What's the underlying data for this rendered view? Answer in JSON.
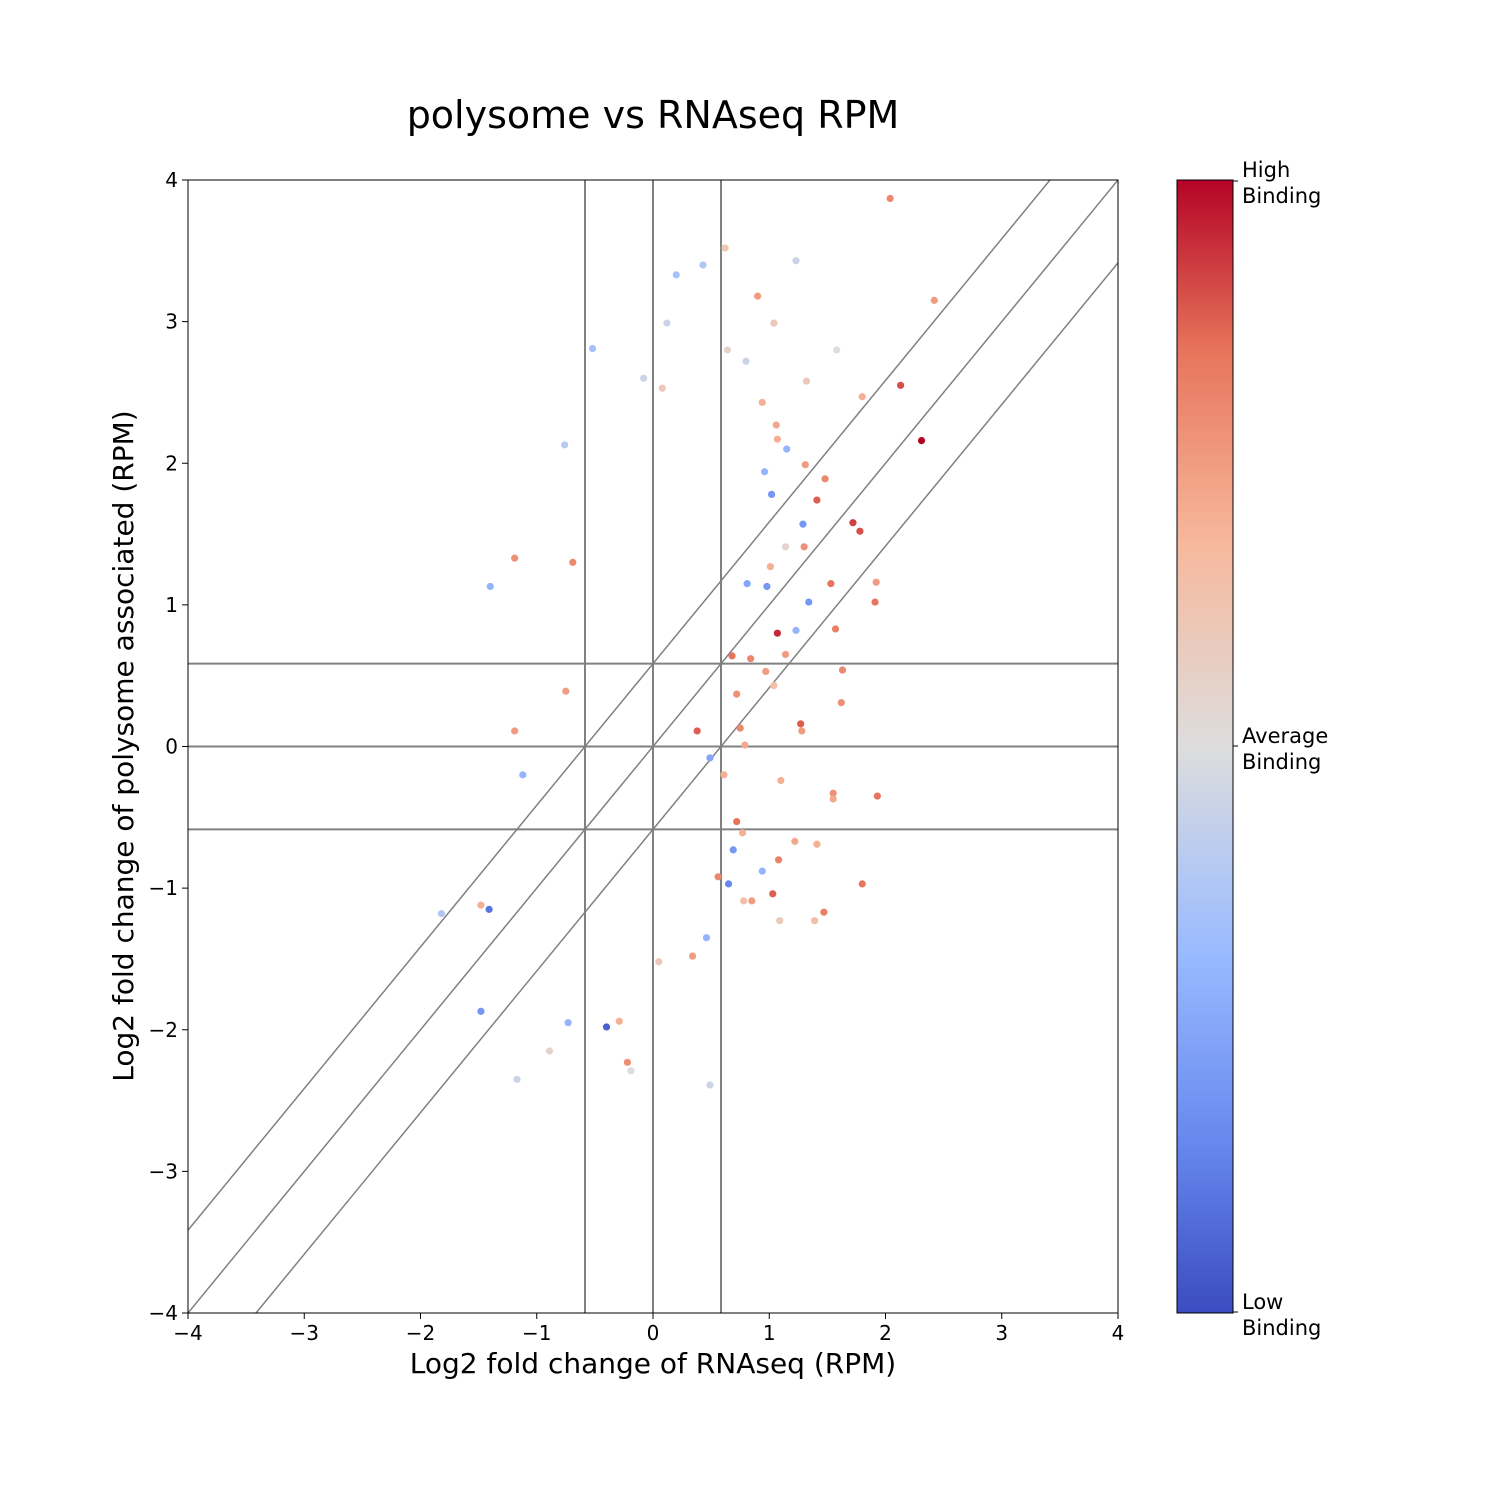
{
  "chart_data": {
    "type": "scatter",
    "title": "polysome vs RNAseq RPM",
    "xlabel": "Log2 fold change of RNAseq (RPM)",
    "ylabel": "Log2 fold change of polysome associated (RPM)",
    "xlim": [
      -4,
      4
    ],
    "ylim": [
      -4,
      4
    ],
    "xticks": [
      "−4",
      "−3",
      "−2",
      "−1",
      "0",
      "1",
      "2",
      "3",
      "4"
    ],
    "yticks": [
      "−4",
      "−3",
      "−2",
      "−1",
      "0",
      "1",
      "2",
      "3",
      "4"
    ],
    "grid": false,
    "reference_lines": {
      "vertical": [
        -0.585,
        0,
        0.585
      ],
      "horizontal": [
        -0.585,
        0,
        0.585
      ],
      "diagonal_offsets": [
        0.585,
        0,
        -0.585
      ]
    },
    "colormap": "coolwarm",
    "colorbar": {
      "high_label": [
        "High",
        "Binding"
      ],
      "mid_label": [
        "Average",
        "Binding"
      ],
      "low_label": [
        "Low",
        "Binding"
      ]
    },
    "colors": {
      "low": "#3b4cc0",
      "mid": "#dddddd",
      "high": "#b40426",
      "lines": "#808080"
    },
    "points": [
      [
        2.04,
        3.87,
        0.8
      ],
      [
        2.42,
        3.15,
        0.75
      ],
      [
        2.13,
        2.55,
        0.9
      ],
      [
        2.31,
        2.16,
        1.0
      ],
      [
        1.72,
        1.58,
        0.92
      ],
      [
        1.78,
        1.52,
        0.9
      ],
      [
        1.48,
        1.89,
        0.8
      ],
      [
        1.41,
        1.74,
        0.88
      ],
      [
        1.53,
        1.15,
        0.85
      ],
      [
        1.91,
        1.02,
        0.85
      ],
      [
        1.92,
        1.16,
        0.75
      ],
      [
        1.57,
        0.83,
        0.82
      ],
      [
        1.63,
        0.54,
        0.8
      ],
      [
        1.62,
        0.31,
        0.78
      ],
      [
        1.07,
        0.8,
        0.95
      ],
      [
        1.27,
        0.16,
        0.88
      ],
      [
        1.28,
        0.11,
        0.75
      ],
      [
        1.55,
        -0.33,
        0.78
      ],
      [
        1.55,
        -0.37,
        0.72
      ],
      [
        1.93,
        -0.35,
        0.85
      ],
      [
        1.8,
        -0.97,
        0.85
      ],
      [
        1.47,
        -1.17,
        0.82
      ],
      [
        1.03,
        -1.04,
        0.88
      ],
      [
        1.08,
        -0.8,
        0.82
      ],
      [
        1.22,
        -0.67,
        0.72
      ],
      [
        1.41,
        -0.69,
        0.7
      ],
      [
        1.39,
        -1.23,
        0.65
      ],
      [
        1.09,
        -1.23,
        0.6
      ],
      [
        0.85,
        -1.09,
        0.75
      ],
      [
        0.9,
        3.18,
        0.75
      ],
      [
        0.62,
        3.52,
        0.62
      ],
      [
        1.04,
        2.99,
        0.6
      ],
      [
        1.23,
        3.43,
        0.45
      ],
      [
        1.32,
        2.58,
        0.6
      ],
      [
        1.58,
        2.8,
        0.5
      ],
      [
        1.8,
        2.47,
        0.7
      ],
      [
        0.2,
        3.33,
        0.35
      ],
      [
        0.43,
        3.4,
        0.38
      ],
      [
        -0.52,
        2.81,
        0.35
      ],
      [
        -0.76,
        2.13,
        0.4
      ],
      [
        -1.4,
        1.13,
        0.3
      ],
      [
        -1.19,
        1.33,
        0.78
      ],
      [
        -0.69,
        1.3,
        0.8
      ],
      [
        -1.19,
        0.11,
        0.75
      ],
      [
        -0.75,
        0.39,
        0.75
      ],
      [
        -1.12,
        -0.2,
        0.3
      ],
      [
        -1.41,
        -1.15,
        0.1
      ],
      [
        -1.82,
        -1.18,
        0.38
      ],
      [
        -1.48,
        -1.12,
        0.7
      ],
      [
        -1.48,
        -1.87,
        0.2
      ],
      [
        -1.17,
        -2.35,
        0.45
      ],
      [
        -0.89,
        -2.15,
        0.55
      ],
      [
        -0.73,
        -1.95,
        0.3
      ],
      [
        -0.4,
        -1.98,
        0.05
      ],
      [
        -0.22,
        -2.23,
        0.78
      ],
      [
        -0.19,
        -2.29,
        0.5
      ],
      [
        0.49,
        -2.39,
        0.45
      ],
      [
        0.34,
        -1.48,
        0.75
      ],
      [
        0.46,
        -1.35,
        0.3
      ],
      [
        0.05,
        -1.52,
        0.6
      ],
      [
        -0.29,
        -1.94,
        0.7
      ],
      [
        -0.08,
        2.6,
        0.45
      ],
      [
        0.08,
        2.53,
        0.6
      ],
      [
        0.12,
        2.99,
        0.45
      ],
      [
        0.64,
        2.8,
        0.55
      ],
      [
        0.8,
        2.72,
        0.45
      ],
      [
        0.94,
        2.43,
        0.7
      ],
      [
        1.06,
        2.27,
        0.72
      ],
      [
        1.07,
        2.17,
        0.7
      ],
      [
        1.15,
        2.1,
        0.3
      ],
      [
        1.31,
        1.99,
        0.75
      ],
      [
        1.02,
        1.78,
        0.2
      ],
      [
        0.96,
        1.94,
        0.3
      ],
      [
        1.29,
        1.57,
        0.2
      ],
      [
        1.14,
        1.41,
        0.55
      ],
      [
        1.3,
        1.41,
        0.78
      ],
      [
        1.34,
        1.02,
        0.2
      ],
      [
        1.23,
        0.82,
        0.3
      ],
      [
        0.98,
        1.13,
        0.2
      ],
      [
        1.01,
        1.27,
        0.7
      ],
      [
        0.81,
        1.15,
        0.25
      ],
      [
        0.84,
        0.62,
        0.8
      ],
      [
        0.97,
        0.53,
        0.75
      ],
      [
        1.04,
        0.43,
        0.65
      ],
      [
        0.75,
        0.13,
        0.8
      ],
      [
        0.79,
        0.01,
        0.72
      ],
      [
        1.1,
        -0.24,
        0.7
      ],
      [
        0.77,
        -0.61,
        0.7
      ],
      [
        0.69,
        -0.73,
        0.2
      ],
      [
        0.65,
        -0.97,
        0.15
      ],
      [
        0.94,
        -0.88,
        0.3
      ],
      [
        0.78,
        -1.09,
        0.65
      ],
      [
        0.56,
        -0.92,
        0.8
      ],
      [
        0.72,
        -0.53,
        0.85
      ],
      [
        1.14,
        0.65,
        0.75
      ],
      [
        0.68,
        0.64,
        0.85
      ],
      [
        0.72,
        0.37,
        0.78
      ],
      [
        0.49,
        -0.08,
        0.25
      ],
      [
        0.61,
        -0.2,
        0.7
      ],
      [
        0.38,
        0.11,
        0.88
      ]
    ]
  }
}
